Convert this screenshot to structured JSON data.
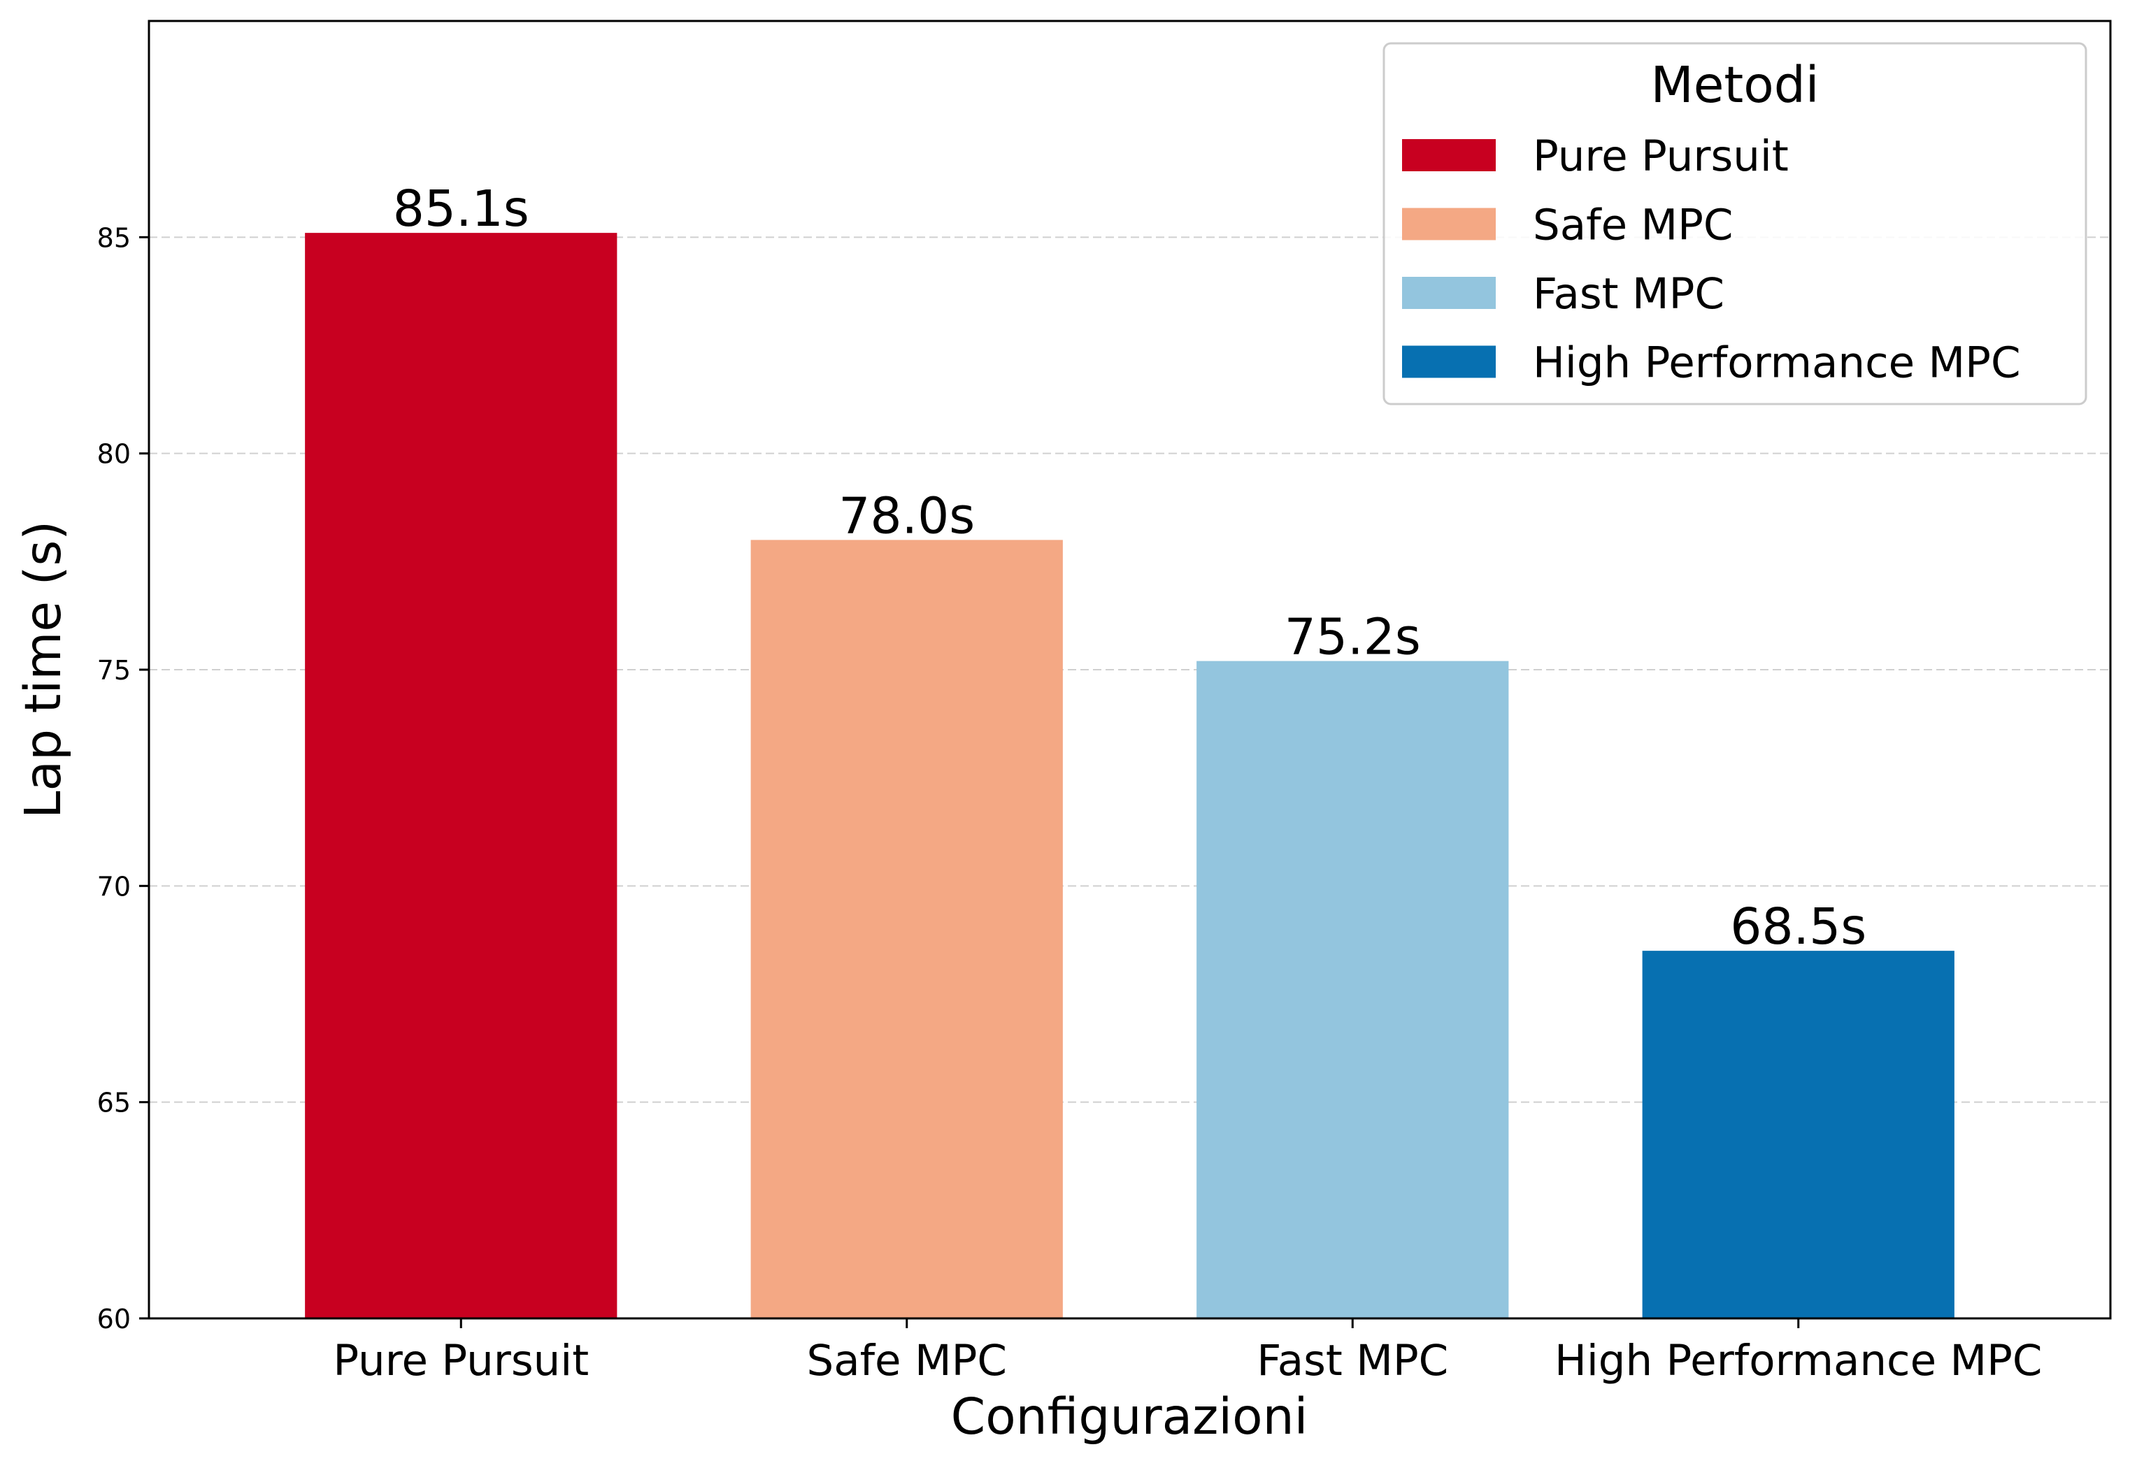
{
  "chart_data": {
    "type": "bar",
    "title": "",
    "xlabel": "Configurazioni",
    "ylabel": "Lap time (s)",
    "categories": [
      "Pure Pursuit",
      "Safe MPC",
      "Fast MPC",
      "High Performance MPC"
    ],
    "values": [
      85.1,
      78.0,
      75.2,
      68.5
    ],
    "value_labels": [
      "85.1s",
      "78.0s",
      "75.2s",
      "68.5s"
    ],
    "colors": [
      "#c80020",
      "#f4a884",
      "#93c5de",
      "#0770b1"
    ],
    "ylim": [
      60,
      90
    ],
    "yticks": [
      60,
      65,
      70,
      75,
      80,
      85
    ],
    "ytick_labels": [
      "60",
      "65",
      "70",
      "75",
      "80",
      "85"
    ],
    "grid": "y-dashed",
    "legend": {
      "title": "Metodi",
      "placement": "top-right",
      "entries": [
        "Pure Pursuit",
        "Safe MPC",
        "Fast MPC",
        "High Performance MPC"
      ]
    }
  }
}
